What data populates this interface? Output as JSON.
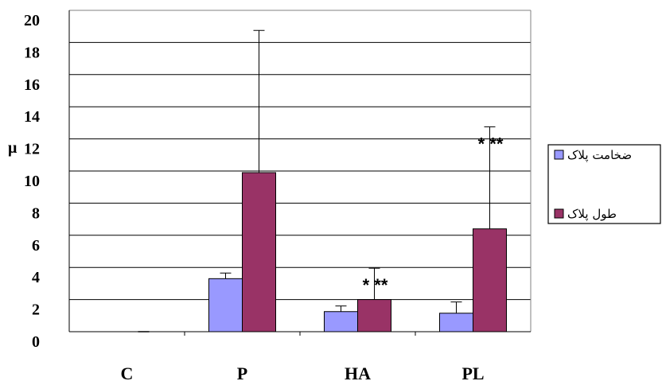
{
  "chart_data": {
    "type": "bar",
    "categories": [
      "C",
      "P",
      "HA",
      "PL"
    ],
    "series": [
      {
        "name": "ضخامت پلاک",
        "color": "#9999FF",
        "values": [
          0,
          3.3,
          1.25,
          1.15
        ],
        "errors": [
          0,
          0.35,
          0.35,
          0.7
        ]
      },
      {
        "name": "طول پلاک",
        "color": "#993366",
        "values": [
          0,
          9.9,
          2.0,
          6.4
        ],
        "errors": [
          0,
          8.85,
          1.95,
          6.35
        ]
      }
    ],
    "ylim": [
      0,
      20
    ],
    "yticks": [
      "0",
      "2",
      "4",
      "6",
      "8",
      "10",
      "12",
      "14",
      "16",
      "18",
      "20"
    ],
    "ylabel": "μ",
    "xlabel": "",
    "title": "",
    "grid": true,
    "legend": "right",
    "annotations": [
      {
        "text": "* **",
        "category": "HA"
      },
      {
        "text": "* **",
        "category": "PL"
      }
    ]
  }
}
